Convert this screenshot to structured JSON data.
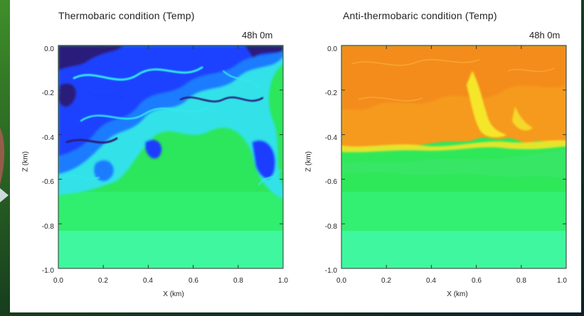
{
  "panels": [
    {
      "title": "Thermobaric condition (Temp)",
      "time": "48h 0m",
      "xlabel": "X (km)",
      "ylabel": "Z (km)",
      "x_ticks": [
        "0.0",
        "0.2",
        "0.4",
        "0.6",
        "0.8",
        "1.0"
      ],
      "y_ticks": [
        "0.0",
        "-0.2",
        "-0.4",
        "-0.6",
        "-0.8",
        "-1.0"
      ]
    },
    {
      "title": "Anti-thermobaric condition (Temp)",
      "time": "48h 0m",
      "xlabel": "X (km)",
      "ylabel": "Z (km)",
      "x_ticks": [
        "0.0",
        "0.2",
        "0.4",
        "0.6",
        "0.8",
        "1.0"
      ],
      "y_ticks": [
        "0.0",
        "-0.2",
        "-0.4",
        "-0.6",
        "-0.8",
        "-1.0"
      ]
    }
  ],
  "colors": {
    "deep_green": "#2ee85a",
    "light_green": "#3ff59a",
    "cyan": "#33e6f0",
    "blue": "#1b3dff",
    "navy": "#2a1a7a",
    "orange": "#f59a1e",
    "yellow": "#f5e62a"
  }
}
